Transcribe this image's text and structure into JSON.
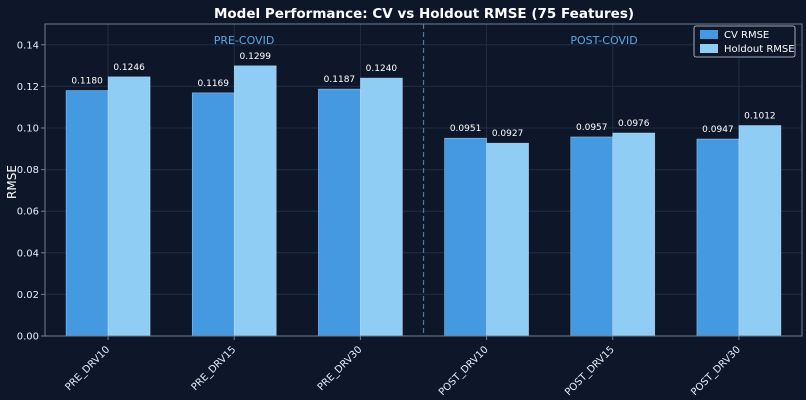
{
  "chart_data": {
    "type": "bar",
    "title": "Model Performance: CV vs Holdout RMSE (75 Features)",
    "xlabel": "",
    "ylabel": "RMSE",
    "ylim": [
      0,
      0.15
    ],
    "yticks": [
      0.0,
      0.02,
      0.04,
      0.06,
      0.08,
      0.1,
      0.12,
      0.14
    ],
    "ytick_labels": [
      "0.00",
      "0.02",
      "0.04",
      "0.06",
      "0.08",
      "0.10",
      "0.12",
      "0.14"
    ],
    "grid": true,
    "legend_position": "top-right",
    "categories": [
      "PRE_DRV10",
      "PRE_DRV15",
      "PRE_DRV30",
      "POST_DRV10",
      "POST_DRV15",
      "POST_DRV30"
    ],
    "series": [
      {
        "name": "CV RMSE",
        "color": "#4499e0",
        "values": [
          0.118,
          0.1169,
          0.1187,
          0.0951,
          0.0957,
          0.0947
        ],
        "labels": [
          "0.1180",
          "0.1169",
          "0.1187",
          "0.0951",
          "0.0957",
          "0.0947"
        ]
      },
      {
        "name": "Holdout RMSE",
        "color": "#90cdf4",
        "values": [
          0.1246,
          0.1299,
          0.124,
          0.0927,
          0.0976,
          0.1012
        ],
        "labels": [
          "0.1246",
          "0.1299",
          "0.1240",
          "0.0927",
          "0.0976",
          "0.1012"
        ]
      }
    ],
    "annotations": [
      "PRE-COVID",
      "POST-COVID"
    ],
    "divider_after_category": 2,
    "colors": {
      "background": "#0e1729",
      "axis": "#6f8094",
      "grid": "#1f2d44",
      "divider": "#4f7aa0",
      "annotation": "#5aa8e6"
    }
  }
}
